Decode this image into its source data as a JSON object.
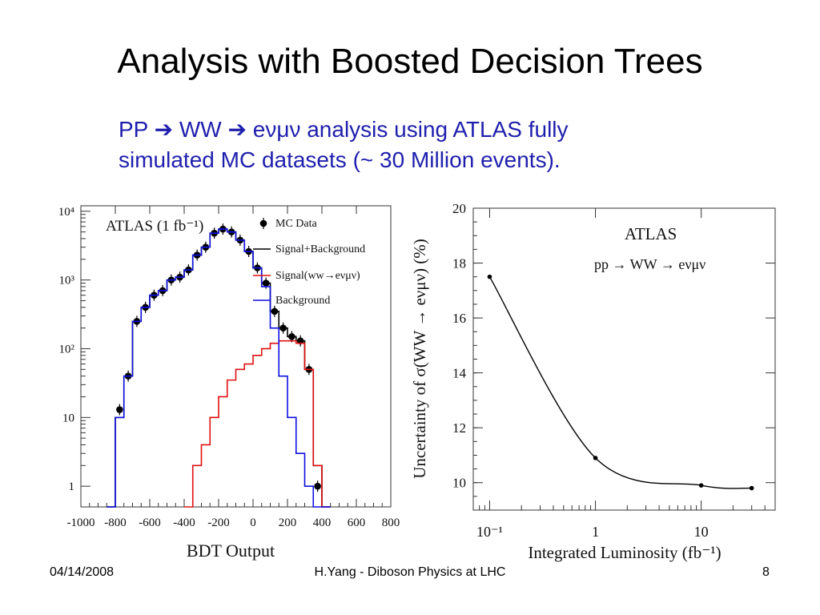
{
  "slide": {
    "title": "Analysis with Boosted Decision Trees",
    "subtitle_line1": "PP ➔ WW ➔ eνμν analysis using ATLAS fully",
    "subtitle_line2": "simulated MC datasets (~ 30 Million events).",
    "subtitle_color": "#1f1fae"
  },
  "footer": {
    "date": "04/14/2008",
    "center": "H.Yang - Diboson Physics at LHC",
    "page": "8"
  },
  "chart_data": [
    {
      "type": "line",
      "log_y": true,
      "experiment_label": "ATLAS (1 fb⁻¹)",
      "xlabel": "BDT Output",
      "ylabel": "",
      "xlim": [
        -1000,
        800
      ],
      "ylim": [
        0.5,
        12000
      ],
      "x_tick_labels": [
        "-1000",
        "-800",
        "-600",
        "-400",
        "-200",
        "0",
        "200",
        "400",
        "600",
        "800"
      ],
      "x_ticks": [
        -1000,
        -800,
        -600,
        -400,
        -200,
        0,
        200,
        400,
        600,
        800
      ],
      "y_tick_labels": [
        "1",
        "10",
        "10²",
        "10³",
        "10⁴"
      ],
      "y_ticks": [
        1,
        10,
        100,
        1000,
        10000
      ],
      "legend": [
        {
          "label": "MC Data",
          "style": "marker",
          "color": "#000000"
        },
        {
          "label": "Signal+Background",
          "style": "line",
          "color": "#000000"
        },
        {
          "label": "Signal(ww→eνμν)",
          "style": "line",
          "color": "#e01010"
        },
        {
          "label": "Background",
          "style": "line",
          "color": "#1010e0"
        }
      ],
      "bin_edges": [
        -850,
        -800,
        -750,
        -700,
        -650,
        -600,
        -550,
        -500,
        -450,
        -400,
        -350,
        -300,
        -250,
        -200,
        -150,
        -100,
        -50,
        0,
        50,
        100,
        150,
        200,
        250,
        300,
        350,
        400,
        450
      ],
      "series": [
        {
          "name": "MC Data",
          "style": "points",
          "color": "#000000",
          "x": [
            -775,
            -725,
            -675,
            -625,
            -575,
            -525,
            -475,
            -425,
            -375,
            -325,
            -275,
            -225,
            -175,
            -125,
            -75,
            -25,
            25,
            75,
            125,
            175,
            225,
            275,
            325,
            375,
            425
          ],
          "y": [
            13,
            40,
            250,
            400,
            600,
            700,
            1000,
            1100,
            1400,
            2300,
            3000,
            4800,
            5500,
            5000,
            3800,
            2600,
            1500,
            900,
            350,
            200,
            150,
            130,
            50,
            1,
            0
          ]
        },
        {
          "name": "Signal+Background",
          "style": "step",
          "color": "#000000",
          "values": [
            0.5,
            10,
            40,
            250,
            400,
            600,
            700,
            1000,
            1100,
            1400,
            2300,
            3000,
            4800,
            5500,
            5000,
            3800,
            2600,
            1500,
            900,
            350,
            200,
            150,
            130,
            50,
            2,
            0.5
          ]
        },
        {
          "name": "Signal(ww→eνμν)",
          "style": "step",
          "color": "#e01010",
          "values": [
            null,
            null,
            null,
            null,
            null,
            null,
            null,
            null,
            null,
            0.5,
            2,
            4,
            10,
            20,
            35,
            50,
            60,
            80,
            100,
            120,
            130,
            130,
            120,
            50,
            2,
            0.5
          ]
        },
        {
          "name": "Background",
          "style": "step",
          "color": "#1010e0",
          "values": [
            0.5,
            10,
            40,
            250,
            400,
            600,
            700,
            1000,
            1100,
            1400,
            2300,
            3000,
            4800,
            5500,
            5000,
            3800,
            2600,
            1500,
            800,
            200,
            40,
            10,
            3,
            1,
            0.5,
            0.5
          ]
        }
      ]
    },
    {
      "type": "line",
      "log_x": true,
      "experiment_label": "ATLAS",
      "process_label": "pp → WW → eνμν",
      "xlabel": "Integrated Luminosity (fb⁻¹)",
      "ylabel": "Uncertainty of σ(WW → eνμν) (%)",
      "xlim": [
        0.07,
        50
      ],
      "ylim": [
        9,
        20
      ],
      "x_tick_labels": [
        "10⁻¹",
        "1",
        "10"
      ],
      "x_ticks": [
        0.1,
        1,
        10
      ],
      "y_tick_labels": [
        "10",
        "12",
        "14",
        "16",
        "18",
        "20"
      ],
      "y_ticks": [
        10,
        12,
        14,
        16,
        18,
        20
      ],
      "series": [
        {
          "name": "",
          "color": "#000000",
          "x": [
            0.1,
            1,
            10,
            30
          ],
          "y": [
            17.5,
            10.9,
            9.9,
            9.8
          ]
        }
      ]
    }
  ]
}
